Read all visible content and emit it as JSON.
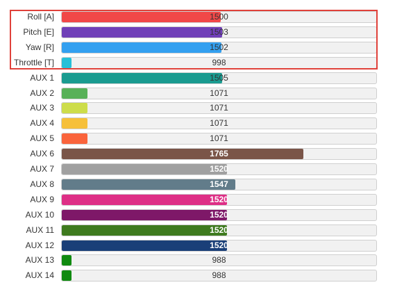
{
  "scale": {
    "min": 988,
    "max": 2000
  },
  "channels": [
    {
      "label": "Roll [A]",
      "value": 1500,
      "color": "#f14848"
    },
    {
      "label": "Pitch [E]",
      "value": 1503,
      "color": "#7040b8"
    },
    {
      "label": "Yaw [R]",
      "value": 1502,
      "color": "#33a0f0"
    },
    {
      "label": "Throttle [T]",
      "value": 998,
      "color": "#26c0d8"
    },
    {
      "label": "AUX 1",
      "value": 1505,
      "color": "#1a9b90"
    },
    {
      "label": "AUX 2",
      "value": 1071,
      "color": "#58b158"
    },
    {
      "label": "AUX 3",
      "value": 1071,
      "color": "#cddd4a"
    },
    {
      "label": "AUX 4",
      "value": 1071,
      "color": "#f6c03a"
    },
    {
      "label": "AUX 5",
      "value": 1071,
      "color": "#fa643c"
    },
    {
      "label": "AUX 6",
      "value": 1765,
      "color": "#7a5548",
      "white": true
    },
    {
      "label": "AUX 7",
      "value": 1520,
      "color": "#a0a0a0",
      "white": true
    },
    {
      "label": "AUX 8",
      "value": 1547,
      "color": "#627c8a",
      "white": true
    },
    {
      "label": "AUX 9",
      "value": 1520,
      "color": "#de2f86",
      "white": true
    },
    {
      "label": "AUX 10",
      "value": 1520,
      "color": "#7e1868",
      "white": true
    },
    {
      "label": "AUX 11",
      "value": 1520,
      "color": "#3e7a1e",
      "white": true
    },
    {
      "label": "AUX 12",
      "value": 1520,
      "color": "#1a3f78",
      "white": true
    },
    {
      "label": "AUX 13",
      "value": 988,
      "color": "#108a10"
    },
    {
      "label": "AUX 14",
      "value": 988,
      "color": "#108a10"
    }
  ]
}
